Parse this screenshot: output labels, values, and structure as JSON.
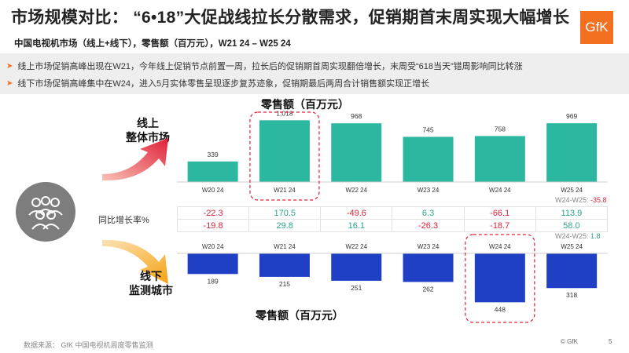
{
  "header": {
    "title": "市场规模对比：  “6•18”大促战线拉长分散需求，促销期首末周实现大幅增长",
    "subtitle": "中国电视机市场（线上+线下），零售额（百万元），W21 24 – W25 24",
    "logo_text": "GfK"
  },
  "bullets": [
    "线上市场促销高峰出现在W21，今年线上促销节点前置一周，拉长后的促销期首周实现翻倍增长，末周受“618当天”错周影响同比转涨",
    "线下市场促销高峰集中在W24，进入5月实体零售呈现逐步复苏迹象，促销期最后两周合计销售额实现正增长"
  ],
  "icons": {
    "bullet": "arrow-right-icon",
    "group": "people-group-icon"
  },
  "labels": {
    "online_line1": "线上",
    "online_line2": "整体市场",
    "offline_line1": "线下",
    "offline_line2": "监测城市",
    "yoy": "同比增长率%"
  },
  "chart_data": [
    {
      "type": "bar",
      "title": "零售额（百万元）",
      "categories": [
        "W20 24",
        "W21 24",
        "W22 24",
        "W23 24",
        "W24 24",
        "W25 24"
      ],
      "series": [
        {
          "values": [
            339,
            1018,
            968,
            745,
            758,
            969
          ]
        }
      ],
      "yoy_percent": [
        -22.3,
        170.5,
        -49.6,
        6.3,
        -66.1,
        113.9
      ],
      "highlight": "W21 24",
      "note": {
        "label": "W24-W25: ",
        "value": "-35.8"
      },
      "color": "#2cb8a0"
    },
    {
      "type": "bar",
      "title": "零售额（百万元）",
      "orientation": "downward",
      "categories": [
        "W20 24",
        "W21 24",
        "W22 24",
        "W23 24",
        "W24 24",
        "W25 24"
      ],
      "series": [
        {
          "values": [
            189,
            215,
            251,
            262,
            448,
            318
          ]
        }
      ],
      "yoy_percent": [
        -19.8,
        29.8,
        16.1,
        -26.3,
        -18.7,
        58.0
      ],
      "highlight": "W24 24",
      "note": {
        "label": "W24-W25: ",
        "value": "1.8"
      },
      "color": "#1f3fc4"
    }
  ],
  "colors": {
    "accent": "#f37021",
    "online_bar": "#2cb8a0",
    "offline_bar": "#1f3fc4",
    "positive": "#2aa58d",
    "negative": "#e0203a",
    "highlight_box": "#e0203a"
  },
  "footer": {
    "source": "数据来源：  GfK 中国电视机周度零售监测",
    "copyright": "© GfK",
    "page": "5"
  }
}
